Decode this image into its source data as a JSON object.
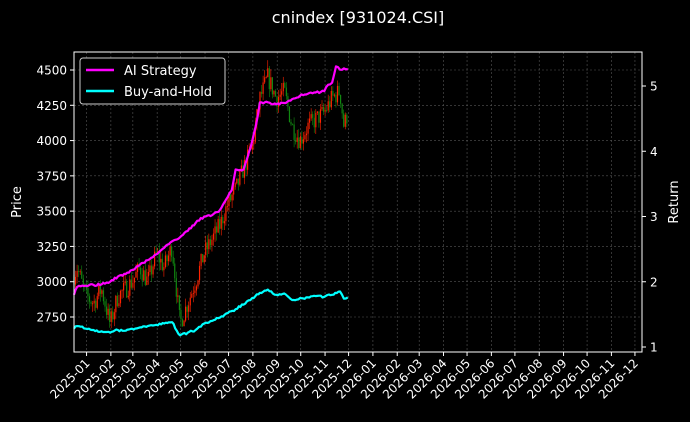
{
  "chart_data": {
    "type": "line",
    "title": "cnindex [931024.CSI]",
    "ylabel_left": "Price",
    "ylabel_right": "Return",
    "x_ticks": [
      "2025-01",
      "2025-02",
      "2025-03",
      "2025-04",
      "2025-05",
      "2025-06",
      "2025-07",
      "2025-08",
      "2025-09",
      "2025-10",
      "2025-11",
      "2025-12",
      "2026-01",
      "2026-02",
      "2026-03",
      "2026-04",
      "2026-05",
      "2026-06",
      "2026-07",
      "2026-08",
      "2026-09",
      "2026-10",
      "2026-11",
      "2026-12"
    ],
    "y_left_ticks": [
      2750,
      3000,
      3250,
      3500,
      3750,
      4000,
      4250,
      4500
    ],
    "y_right_ticks": [
      1,
      2,
      3,
      4,
      5
    ],
    "grid": true,
    "legend_position": "top-left",
    "colors": {
      "background": "#000000",
      "ai_strategy": "#ff00ff",
      "buy_and_hold": "#00ffff",
      "candle_up": "#ff2200",
      "candle_down": "#118811",
      "grid": "#555555"
    },
    "series": [
      {
        "name": "AI Strategy",
        "axis": "right",
        "points": [
          [
            "2024-12-16",
            1.8
          ],
          [
            "2024-12-20",
            1.92
          ],
          [
            "2024-12-31",
            1.94
          ],
          [
            "2025-01-10",
            1.95
          ],
          [
            "2025-01-20",
            1.96
          ],
          [
            "2025-01-31",
            2.0
          ],
          [
            "2025-02-10",
            2.08
          ],
          [
            "2025-02-20",
            2.12
          ],
          [
            "2025-02-28",
            2.18
          ],
          [
            "2025-03-10",
            2.26
          ],
          [
            "2025-03-20",
            2.33
          ],
          [
            "2025-03-31",
            2.42
          ],
          [
            "2025-04-10",
            2.52
          ],
          [
            "2025-04-20",
            2.62
          ],
          [
            "2025-04-30",
            2.68
          ],
          [
            "2025-05-10",
            2.78
          ],
          [
            "2025-05-20",
            2.9
          ],
          [
            "2025-05-31",
            3.0
          ],
          [
            "2025-06-10",
            3.02
          ],
          [
            "2025-06-20",
            3.1
          ],
          [
            "2025-06-30",
            3.3
          ],
          [
            "2025-07-05",
            3.4
          ],
          [
            "2025-07-10",
            3.72
          ],
          [
            "2025-07-20",
            3.72
          ],
          [
            "2025-07-25",
            3.9
          ],
          [
            "2025-07-31",
            4.15
          ],
          [
            "2025-08-05",
            4.4
          ],
          [
            "2025-08-10",
            4.75
          ],
          [
            "2025-08-20",
            4.75
          ],
          [
            "2025-08-31",
            4.72
          ],
          [
            "2025-09-10",
            4.74
          ],
          [
            "2025-09-20",
            4.8
          ],
          [
            "2025-09-30",
            4.85
          ],
          [
            "2025-10-10",
            4.88
          ],
          [
            "2025-10-20",
            4.9
          ],
          [
            "2025-10-31",
            4.92
          ],
          [
            "2025-11-05",
            5.02
          ],
          [
            "2025-11-10",
            5.05
          ],
          [
            "2025-11-15",
            5.3
          ],
          [
            "2025-11-20",
            5.25
          ],
          [
            "2025-11-25",
            5.27
          ],
          [
            "2025-11-30",
            5.26
          ]
        ]
      },
      {
        "name": "Buy-and-Hold",
        "axis": "right",
        "points": [
          [
            "2024-12-16",
            1.28
          ],
          [
            "2024-12-20",
            1.32
          ],
          [
            "2024-12-31",
            1.28
          ],
          [
            "2025-01-10",
            1.26
          ],
          [
            "2025-01-20",
            1.24
          ],
          [
            "2025-01-31",
            1.22
          ],
          [
            "2025-02-10",
            1.26
          ],
          [
            "2025-02-20",
            1.25
          ],
          [
            "2025-02-28",
            1.28
          ],
          [
            "2025-03-10",
            1.3
          ],
          [
            "2025-03-20",
            1.32
          ],
          [
            "2025-03-31",
            1.34
          ],
          [
            "2025-04-10",
            1.36
          ],
          [
            "2025-04-20",
            1.38
          ],
          [
            "2025-04-30",
            1.18
          ],
          [
            "2025-05-10",
            1.22
          ],
          [
            "2025-05-20",
            1.26
          ],
          [
            "2025-05-31",
            1.36
          ],
          [
            "2025-06-10",
            1.4
          ],
          [
            "2025-06-20",
            1.45
          ],
          [
            "2025-06-30",
            1.52
          ],
          [
            "2025-07-10",
            1.58
          ],
          [
            "2025-07-20",
            1.65
          ],
          [
            "2025-07-31",
            1.75
          ],
          [
            "2025-08-10",
            1.83
          ],
          [
            "2025-08-20",
            1.88
          ],
          [
            "2025-08-31",
            1.8
          ],
          [
            "2025-09-10",
            1.82
          ],
          [
            "2025-09-20",
            1.72
          ],
          [
            "2025-09-30",
            1.75
          ],
          [
            "2025-10-10",
            1.76
          ],
          [
            "2025-10-20",
            1.78
          ],
          [
            "2025-10-31",
            1.77
          ],
          [
            "2025-11-10",
            1.8
          ],
          [
            "2025-11-20",
            1.85
          ],
          [
            "2025-11-25",
            1.74
          ],
          [
            "2025-11-30",
            1.76
          ]
        ]
      },
      {
        "name": "Price",
        "axis": "left",
        "type": "candlestick",
        "points": [
          [
            "2024-12-16",
            3050
          ],
          [
            "2024-12-20",
            3100
          ],
          [
            "2024-12-31",
            2900
          ],
          [
            "2025-01-10",
            2850
          ],
          [
            "2025-01-20",
            2950
          ],
          [
            "2025-01-31",
            2700
          ],
          [
            "2025-02-10",
            2900
          ],
          [
            "2025-02-20",
            2950
          ],
          [
            "2025-02-28",
            3000
          ],
          [
            "2025-03-10",
            3100
          ],
          [
            "2025-03-20",
            3000
          ],
          [
            "2025-03-31",
            3200
          ],
          [
            "2025-04-10",
            3100
          ],
          [
            "2025-04-20",
            3250
          ],
          [
            "2025-04-30",
            2700
          ],
          [
            "2025-05-10",
            2850
          ],
          [
            "2025-05-20",
            3000
          ],
          [
            "2025-05-31",
            3200
          ],
          [
            "2025-06-10",
            3300
          ],
          [
            "2025-06-20",
            3400
          ],
          [
            "2025-06-30",
            3550
          ],
          [
            "2025-07-10",
            3650
          ],
          [
            "2025-07-20",
            3800
          ],
          [
            "2025-07-31",
            3950
          ],
          [
            "2025-08-10",
            4300
          ],
          [
            "2025-08-20",
            4450
          ],
          [
            "2025-08-31",
            4300
          ],
          [
            "2025-09-10",
            4350
          ],
          [
            "2025-09-20",
            4100
          ],
          [
            "2025-09-30",
            4000
          ],
          [
            "2025-10-10",
            4100
          ],
          [
            "2025-10-20",
            4150
          ],
          [
            "2025-10-31",
            4200
          ],
          [
            "2025-11-10",
            4300
          ],
          [
            "2025-11-20",
            4350
          ],
          [
            "2025-11-25",
            4100
          ],
          [
            "2025-11-30",
            4200
          ]
        ]
      }
    ]
  }
}
